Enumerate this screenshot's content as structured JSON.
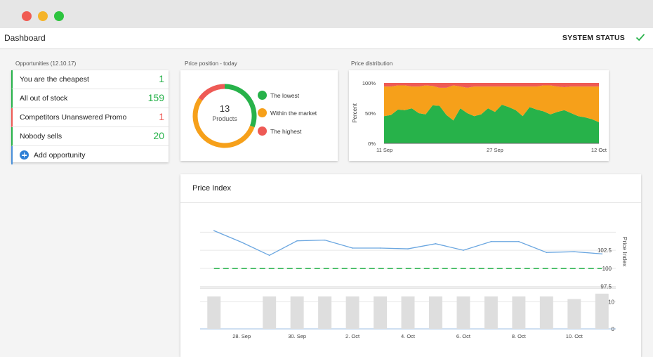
{
  "app": {
    "title": "Dashboard",
    "system_status": "SYSTEM STATUS"
  },
  "opportunities": {
    "label": "Opportunities (12.10.17)",
    "items": [
      {
        "label": "You are the cheapest",
        "count": "1",
        "status": "green"
      },
      {
        "label": "All out of stock",
        "count": "159",
        "status": "green"
      },
      {
        "label": "Competitors Unanswered Promo",
        "count": "1",
        "status": "red"
      },
      {
        "label": "Nobody sells",
        "count": "20",
        "status": "green"
      }
    ],
    "add_label": "Add opportunity"
  },
  "price_position": {
    "label": "Price position - today",
    "center_value": "13",
    "center_label": "Products",
    "legend": [
      {
        "label": "The lowest",
        "color": "#27b24a"
      },
      {
        "label": "Within the market",
        "color": "#f6a01a"
      },
      {
        "label": "The highest",
        "color": "#ee5a55"
      }
    ]
  },
  "price_distribution": {
    "label": "Price distribution"
  },
  "price_index": {
    "title": "Price Index"
  },
  "chart_data": [
    {
      "type": "pie",
      "categories": [
        "The lowest",
        "Within the market",
        "The highest"
      ],
      "values": [
        4,
        7,
        2
      ],
      "colors": [
        "#27b24a",
        "#f6a01a",
        "#ee5a55"
      ]
    },
    {
      "type": "area",
      "x": [
        "11 Sep",
        "12 Sep",
        "13 Sep",
        "14 Sep",
        "15 Sep",
        "16 Sep",
        "17 Sep",
        "18 Sep",
        "19 Sep",
        "20 Sep",
        "21 Sep",
        "22 Sep",
        "23 Sep",
        "24 Sep",
        "25 Sep",
        "26 Sep",
        "27 Sep",
        "28 Sep",
        "29 Sep",
        "30 Sep",
        "1 Oct",
        "2 Oct",
        "3 Oct",
        "4 Oct",
        "5 Oct",
        "6 Oct",
        "7 Oct",
        "8 Oct",
        "9 Oct",
        "10 Oct",
        "11 Oct",
        "12 Oct"
      ],
      "xticks": [
        "11 Sep",
        "27 Sep",
        "12 Oct"
      ],
      "ylabel": "Percent",
      "yticks": [
        "0%",
        "50%",
        "100%"
      ],
      "ylim": [
        0,
        100
      ],
      "series": [
        {
          "name": "The lowest",
          "color": "#27b24a",
          "values": [
            45,
            47,
            56,
            55,
            58,
            50,
            48,
            63,
            62,
            47,
            38,
            58,
            50,
            45,
            48,
            58,
            52,
            64,
            60,
            55,
            45,
            60,
            56,
            53,
            48,
            52,
            55,
            50,
            45,
            43,
            40,
            35
          ]
        },
        {
          "name": "Within the market",
          "color": "#f6a01a",
          "values": [
            49,
            47,
            40,
            41,
            36,
            44,
            48,
            32,
            30,
            45,
            58,
            36,
            42,
            49,
            46,
            36,
            42,
            30,
            34,
            39,
            49,
            34,
            38,
            43,
            48,
            42,
            38,
            44,
            49,
            51,
            54,
            59
          ]
        },
        {
          "name": "The highest",
          "color": "#ee5a55",
          "values": [
            6,
            6,
            4,
            4,
            6,
            6,
            4,
            5,
            8,
            8,
            4,
            6,
            8,
            6,
            6,
            6,
            6,
            6,
            6,
            6,
            6,
            6,
            6,
            4,
            4,
            6,
            7,
            6,
            6,
            6,
            6,
            6
          ]
        }
      ]
    },
    {
      "type": "line",
      "x": [
        "27 Sep",
        "28 Sep",
        "29 Sep",
        "30 Sep",
        "1 Oct",
        "2 Oct",
        "3 Oct",
        "4 Oct",
        "5 Oct",
        "6 Oct",
        "7 Oct",
        "8 Oct",
        "9 Oct",
        "10 Oct",
        "11 Oct"
      ],
      "xticks": [
        "28. Sep",
        "30. Sep",
        "2. Oct",
        "4. Oct",
        "6. Oct",
        "8. Oct",
        "10. Oct"
      ],
      "ylabel": "Price Index",
      "yticks": [
        "97.5",
        "100",
        "102.5"
      ],
      "ylim": [
        96.5,
        106
      ],
      "series": [
        {
          "name": "Price Index",
          "color": "#6aa6e0",
          "values": [
            105.2,
            103.6,
            101.8,
            103.8,
            103.9,
            102.8,
            102.8,
            102.7,
            103.4,
            102.5,
            103.7,
            103.7,
            102.2,
            102.3,
            102.0
          ]
        }
      ],
      "reference_line": {
        "value": 100,
        "color": "#27b24a",
        "style": "dashed"
      }
    },
    {
      "type": "bar",
      "x": [
        "27 Sep",
        "28 Sep",
        "29 Sep",
        "30 Sep",
        "1 Oct",
        "2 Oct",
        "3 Oct",
        "4 Oct",
        "5 Oct",
        "6 Oct",
        "7 Oct",
        "8 Oct",
        "9 Oct",
        "10 Oct",
        "11 Oct"
      ],
      "yticks": [
        "0",
        "10"
      ],
      "ylim": [
        0,
        14
      ],
      "values": [
        12,
        0,
        12,
        12,
        12,
        12,
        12,
        12,
        12,
        12,
        12,
        12,
        12,
        11,
        13
      ],
      "color": "#dedede"
    }
  ]
}
